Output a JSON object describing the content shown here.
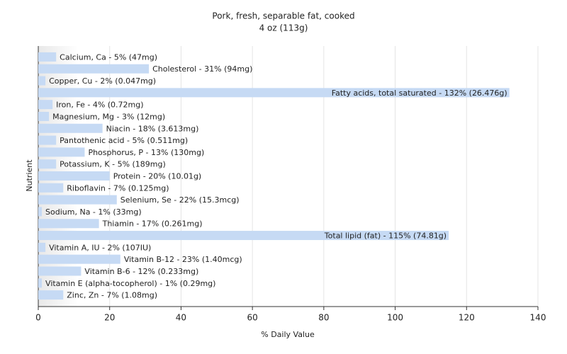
{
  "chart_data": {
    "type": "barh",
    "title": "Pork, fresh, separable fat, cooked",
    "subtitle": "4 oz (113g)",
    "x_label": "% Daily Value",
    "y_label": "Nutrient",
    "categories": [
      "Calcium, Ca - 5% (47mg)",
      "Cholesterol - 31% (94mg)",
      "Copper, Cu - 2% (0.047mg)",
      "Fatty acids, total saturated - 132% (26.476g)",
      "Iron, Fe - 4% (0.72mg)",
      "Magnesium, Mg - 3% (12mg)",
      "Niacin - 18% (3.613mg)",
      "Pantothenic acid - 5% (0.511mg)",
      "Phosphorus, P - 13% (130mg)",
      "Potassium, K - 5% (189mg)",
      "Protein - 20% (10.01g)",
      "Riboflavin - 7% (0.125mg)",
      "Selenium, Se - 22% (15.3mcg)",
      "Sodium, Na - 1% (33mg)",
      "Thiamin - 17% (0.261mg)",
      "Total lipid (fat) - 115% (74.81g)",
      "Vitamin A, IU - 2% (107IU)",
      "Vitamin B-12 - 23% (1.40mcg)",
      "Vitamin B-6 - 12% (0.233mg)",
      "Vitamin E (alpha-tocopherol) - 1% (0.29mg)",
      "Zinc, Zn - 7% (1.08mg)"
    ],
    "values": [
      5,
      31,
      2,
      132,
      4,
      3,
      18,
      5,
      13,
      5,
      20,
      7,
      22,
      1,
      17,
      115,
      2,
      23,
      12,
      1,
      7
    ],
    "color": "#c6daf4",
    "xlim": [
      0,
      140
    ],
    "xticks": [
      0,
      20,
      40,
      60,
      80,
      100,
      120,
      140
    ],
    "grid": true
  }
}
